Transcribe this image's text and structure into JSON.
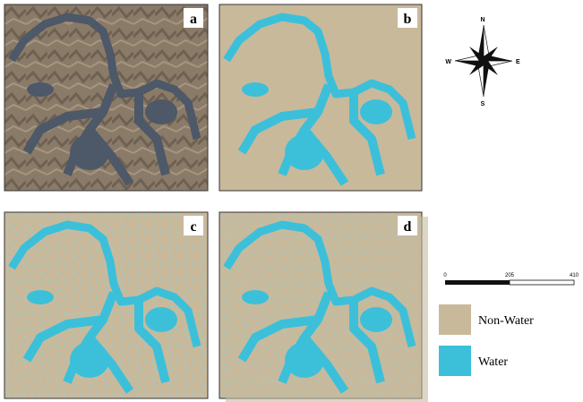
{
  "panels": [
    {
      "label": "a"
    },
    {
      "label": "b"
    },
    {
      "label": "c"
    },
    {
      "label": "d"
    }
  ],
  "compass": {
    "north": "N",
    "south": "S",
    "east": "E",
    "west": "W"
  },
  "scale_bar": {
    "ticks": [
      "0",
      "205",
      "410"
    ]
  },
  "legend": [
    {
      "label": "Non-Water"
    },
    {
      "label": "Water"
    }
  ]
}
